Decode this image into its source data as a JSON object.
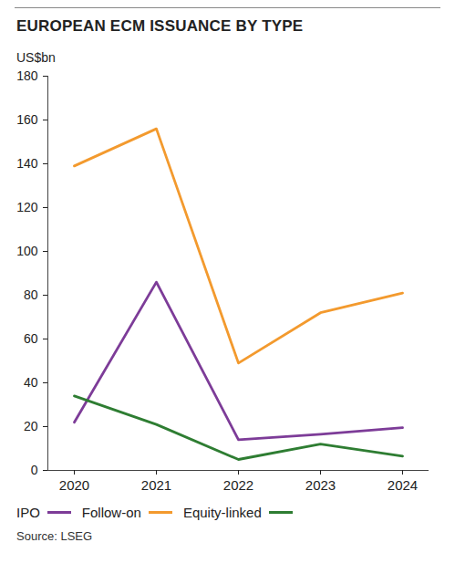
{
  "chart_data": {
    "type": "line",
    "title": "EUROPEAN ECM ISSUANCE BY TYPE",
    "y_label": "US$bn",
    "source": "Source: LSEG",
    "categories": [
      "2020",
      "2021",
      "2022",
      "2023",
      "2024"
    ],
    "series": [
      {
        "name": "IPO",
        "color": "#7d3c98",
        "values": [
          22,
          86,
          14,
          16.5,
          19.5
        ]
      },
      {
        "name": "Follow-on",
        "color": "#f39a2e",
        "values": [
          139,
          156,
          49,
          72,
          81
        ]
      },
      {
        "name": "Equity-linked",
        "color": "#2e7d32",
        "values": [
          34,
          21,
          5,
          12,
          6.5
        ]
      }
    ],
    "ylim": [
      0,
      180
    ],
    "yticks": [
      0,
      20,
      40,
      60,
      80,
      100,
      120,
      140,
      160,
      180
    ],
    "grid": false,
    "legend": "bottom"
  }
}
